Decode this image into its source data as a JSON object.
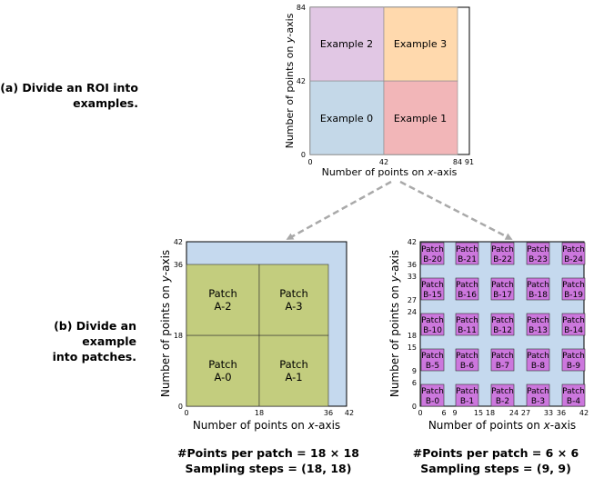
{
  "labels": {
    "part_a": [
      "(a) Divide an ROI into",
      "examples."
    ],
    "part_b": [
      "(b) Divide an example",
      "into patches."
    ]
  },
  "roi_plot": {
    "xlabel_prefix": "Number of points on ",
    "xlabel_var": "x",
    "xlabel_suffix": "-axis",
    "ylabel_prefix": "Number of points on ",
    "ylabel_var": "y",
    "ylabel_suffix": "-axis",
    "x_ticks": [
      "0",
      "42",
      "84",
      "91"
    ],
    "y_ticks": [
      "0",
      "42",
      "84"
    ],
    "examples": [
      "Example 0",
      "Example 1",
      "Example 2",
      "Example 3"
    ],
    "colors": {
      "ex0": "#c4d8e8",
      "ex1": "#f2b6b8",
      "ex2": "#e1c7e4",
      "ex3": "#ffd9ad"
    }
  },
  "patch_a_plot": {
    "xlabel_prefix": "Number of points on ",
    "xlabel_var": "x",
    "xlabel_suffix": "-axis",
    "ylabel_prefix": "Number of points on ",
    "ylabel_var": "y",
    "ylabel_suffix": "-axis",
    "x_ticks": [
      "0",
      "18",
      "36",
      "42"
    ],
    "y_ticks": [
      "0",
      "18",
      "36",
      "42"
    ],
    "patches": [
      {
        "line1": "Patch",
        "line2": "A-0"
      },
      {
        "line1": "Patch",
        "line2": "A-1"
      },
      {
        "line1": "Patch",
        "line2": "A-2"
      },
      {
        "line1": "Patch",
        "line2": "A-3"
      }
    ],
    "colors": {
      "background": "#c5d9ee",
      "patch": "#c3cd7e"
    }
  },
  "patch_b_plot": {
    "xlabel_prefix": "Number of points on ",
    "xlabel_var": "x",
    "xlabel_suffix": "-axis",
    "ylabel_prefix": "Number of points on ",
    "ylabel_var": "y",
    "ylabel_suffix": "-axis",
    "x_ticks": [
      "0",
      "6",
      "9",
      "15",
      "18",
      "24",
      "27",
      "33",
      "36",
      "42"
    ],
    "y_ticks": [
      "0",
      "6",
      "9",
      "15",
      "18",
      "24",
      "27",
      "33",
      "36",
      "42"
    ],
    "patch_word": "Patch",
    "patch_ids": [
      [
        "B-20",
        "B-21",
        "B-22",
        "B-23",
        "B-24"
      ],
      [
        "B-15",
        "B-16",
        "B-17",
        "B-18",
        "B-19"
      ],
      [
        "B-10",
        "B-11",
        "B-12",
        "B-13",
        "B-14"
      ],
      [
        "B-5",
        "B-6",
        "B-7",
        "B-8",
        "B-9"
      ],
      [
        "B-0",
        "B-1",
        "B-2",
        "B-3",
        "B-4"
      ]
    ],
    "colors": {
      "background": "#c5d9ee",
      "patch": "#cc77dd"
    }
  },
  "captions": {
    "a_line1": "#Points per patch = 18 × 18",
    "a_line2": "Sampling steps = (18, 18)",
    "b_line1": "#Points per patch = 6 × 6",
    "b_line2": "Sampling steps = (9, 9)"
  }
}
